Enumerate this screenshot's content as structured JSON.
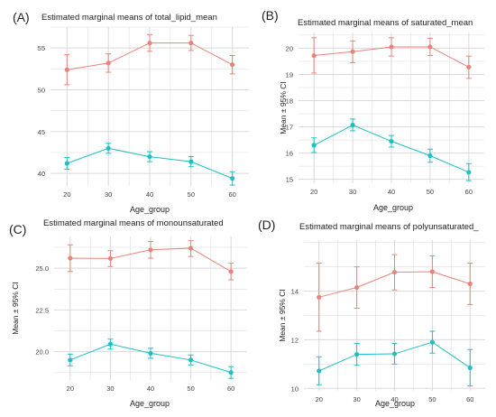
{
  "colors": {
    "series_upper": "#E8837B",
    "series_lower": "#1FBFC4",
    "grid": "#D9D9D9",
    "text": "#222222",
    "axis_text": "#444444"
  },
  "chart_data": [
    {
      "type": "line",
      "panel_label": "(A)",
      "title": "Estimated marginal means of total_lipid_mean",
      "xlabel": "Age_group",
      "ylabel": "",
      "x": [
        20,
        30,
        40,
        50,
        60
      ],
      "x_ticks": [
        "20",
        "30",
        "40",
        "50",
        "60"
      ],
      "ylim": [
        38.5,
        57.5
      ],
      "y_ticks": [
        40,
        45,
        50,
        55
      ],
      "y_tick_labels": [
        "40",
        "45",
        "50",
        "55"
      ],
      "grid": true,
      "error_bars": "95% CI",
      "series": [
        {
          "color": "#E8837B",
          "values": [
            52.4,
            53.2,
            55.6,
            55.6,
            53.0
          ],
          "lower": [
            50.6,
            52.1,
            54.6,
            54.7,
            51.9
          ],
          "upper": [
            54.2,
            54.3,
            56.6,
            56.5,
            54.1
          ]
        },
        {
          "color": "#1FBFC4",
          "values": [
            41.2,
            43.0,
            42.0,
            41.4,
            39.4
          ],
          "lower": [
            40.5,
            42.4,
            41.4,
            40.8,
            38.6
          ],
          "upper": [
            41.9,
            43.6,
            42.6,
            42.0,
            40.2
          ]
        }
      ]
    },
    {
      "type": "line",
      "panel_label": "(B)",
      "title": "Estimated marginal means of saturated_mean",
      "xlabel": "Age_group",
      "ylabel": "Mean ± 95% CI",
      "x": [
        20,
        30,
        40,
        50,
        60
      ],
      "x_ticks": [
        "20",
        "30",
        "40",
        "50",
        "60"
      ],
      "ylim": [
        14.85,
        20.6
      ],
      "y_ticks": [
        15,
        16,
        17,
        18,
        19,
        20
      ],
      "y_tick_labels": [
        "15",
        "16",
        "17",
        "18",
        "19",
        "20"
      ],
      "grid": true,
      "error_bars": "95% CI",
      "series": [
        {
          "color": "#E8837B",
          "values": [
            19.72,
            19.87,
            20.05,
            20.05,
            19.28
          ],
          "lower": [
            19.05,
            19.45,
            19.7,
            19.72,
            18.85
          ],
          "upper": [
            20.4,
            20.28,
            20.4,
            20.38,
            19.7
          ]
        },
        {
          "color": "#1FBFC4",
          "values": [
            16.3,
            17.07,
            16.45,
            15.9,
            15.27
          ],
          "lower": [
            16.02,
            16.85,
            16.23,
            15.65,
            14.95
          ],
          "upper": [
            16.58,
            17.3,
            16.67,
            16.15,
            15.6
          ]
        }
      ]
    },
    {
      "type": "line",
      "panel_label": "(C)",
      "title": "Estimated marginal means of monounsaturated",
      "xlabel": "Age_group",
      "ylabel": "Mean ± 95% CI",
      "x": [
        20,
        30,
        40,
        50,
        60
      ],
      "x_ticks": [
        "20",
        "30",
        "40",
        "50",
        "60"
      ],
      "ylim": [
        18.3,
        26.9
      ],
      "y_ticks": [
        20.0,
        22.5,
        25.0
      ],
      "y_tick_labels": [
        "20.0",
        "22.5",
        "25.0"
      ],
      "grid": true,
      "error_bars": "95% CI",
      "series": [
        {
          "color": "#E8837B",
          "values": [
            25.6,
            25.58,
            26.1,
            26.2,
            24.8
          ],
          "lower": [
            24.8,
            25.1,
            25.6,
            25.7,
            24.3
          ],
          "upper": [
            26.4,
            26.05,
            26.6,
            26.65,
            25.3
          ]
        },
        {
          "color": "#1FBFC4",
          "values": [
            19.5,
            20.45,
            19.9,
            19.5,
            18.75
          ],
          "lower": [
            19.15,
            20.15,
            19.6,
            19.2,
            18.4
          ],
          "upper": [
            19.85,
            20.75,
            20.2,
            19.8,
            19.1
          ]
        }
      ]
    },
    {
      "type": "line",
      "panel_label": "(D)",
      "title": "Estimated marginal means of polyunsaturated_",
      "xlabel": "Age_group",
      "ylabel": "Mean ± 95% CI",
      "x": [
        20,
        30,
        40,
        50,
        60
      ],
      "x_ticks": [
        "20",
        "30",
        "40",
        "50",
        "60"
      ],
      "ylim": [
        9.9,
        16.1
      ],
      "y_ticks": [
        10,
        12,
        14
      ],
      "y_tick_labels": [
        "10",
        "12",
        "14"
      ],
      "grid": true,
      "error_bars": "95% CI",
      "series": [
        {
          "color": "#E8837B",
          "values": [
            13.75,
            14.15,
            14.78,
            14.8,
            14.3
          ],
          "lower": [
            12.35,
            13.3,
            14.05,
            14.15,
            13.45
          ],
          "upper": [
            15.15,
            15.0,
            15.5,
            15.45,
            15.15
          ]
        },
        {
          "color": "#1FBFC4",
          "values": [
            10.72,
            11.4,
            11.42,
            11.9,
            10.85
          ],
          "lower": [
            10.15,
            10.95,
            11.0,
            11.45,
            10.1
          ],
          "upper": [
            11.3,
            11.85,
            11.85,
            12.35,
            11.6
          ]
        }
      ]
    }
  ]
}
